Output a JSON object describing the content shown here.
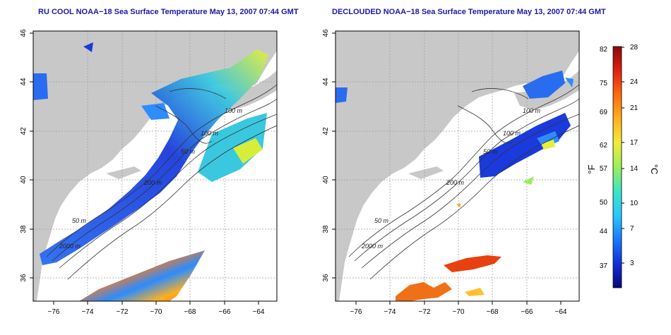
{
  "panels": [
    {
      "id": "left",
      "title": "RU COOL NOAA−18 Sea Surface Temperature May 13, 2007 07:44 GMT"
    },
    {
      "id": "right",
      "title": "DECLOUDED NOAA−18 Sea Surface Temperature May 13, 2007 07:44 GMT"
    }
  ],
  "axes": {
    "x_ticks": [
      "−76",
      "−74",
      "−72",
      "−70",
      "−68",
      "−66",
      "−64"
    ],
    "y_ticks": [
      "36",
      "38",
      "40",
      "42",
      "44",
      "46"
    ]
  },
  "contour_labels": [
    "100 m",
    "100 m",
    "50 m",
    "200 m",
    "50 m",
    "2000 m"
  ],
  "colorbar": {
    "f_label": "°F",
    "c_label": "°C",
    "f_ticks": [
      "82",
      "75",
      "69",
      "62",
      "57",
      "50",
      "44",
      "37"
    ],
    "c_ticks": [
      "28",
      "24",
      "21",
      "17",
      "14",
      "10",
      "7",
      "3"
    ],
    "colors": [
      "#08087a",
      "#1030d8",
      "#1a7aff",
      "#28c8ff",
      "#3ae6c8",
      "#9aee5a",
      "#f0ec3a",
      "#ffb020",
      "#ff6a10",
      "#e02010",
      "#8a0808"
    ]
  },
  "colors": {
    "land": "#c8c8c8",
    "cold": "#1a4ae0",
    "cool": "#2f8cff",
    "warm": "#f07018",
    "title": "#1a1aa8"
  }
}
